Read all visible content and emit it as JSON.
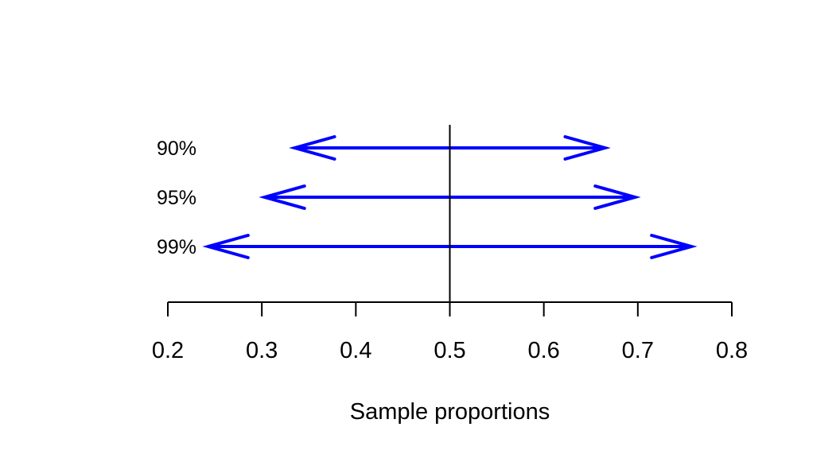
{
  "chart_data": {
    "type": "interval",
    "xlabel": "Sample proportions",
    "xlim": [
      0.2,
      0.8
    ],
    "x_ticks": [
      0.2,
      0.3,
      0.4,
      0.5,
      0.6,
      0.7,
      0.8
    ],
    "x_tick_labels": [
      "0.2",
      "0.3",
      "0.4",
      "0.5",
      "0.6",
      "0.7",
      "0.8"
    ],
    "reference_line": 0.5,
    "grid": false,
    "series_color": "#0000ff",
    "intervals": [
      {
        "label": "90%",
        "lower": 0.335,
        "upper": 0.665
      },
      {
        "label": "95%",
        "lower": 0.303,
        "upper": 0.697
      },
      {
        "label": "99%",
        "lower": 0.243,
        "upper": 0.757
      }
    ]
  }
}
